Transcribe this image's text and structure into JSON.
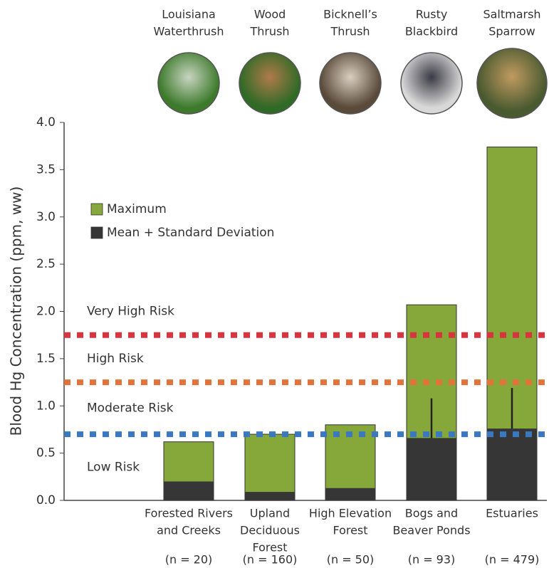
{
  "chart_data": {
    "type": "bar",
    "y_label": "Blood Hg Concentration (ppm, ww)",
    "birds": [
      [
        "Louisiana",
        "Waterthrush"
      ],
      [
        "Wood",
        "Thrush"
      ],
      [
        "Bicknell’s",
        "Thrush"
      ],
      [
        "Rusty",
        "Blackbird"
      ],
      [
        "Saltmarsh",
        "Sparrow"
      ]
    ],
    "categories": [
      [
        "Forested Rivers",
        "and Creeks"
      ],
      [
        "Upland",
        "Deciduous",
        "Forest"
      ],
      [
        "High Elevation",
        "Forest"
      ],
      [
        "Bogs and",
        "Beaver Ponds"
      ],
      [
        "Estuaries"
      ]
    ],
    "sample_sizes": [
      "(n = 20)",
      "(n = 160)",
      "(n = 50)",
      "(n = 93)",
      "(n = 479)"
    ],
    "series": [
      {
        "name": "Maximum",
        "color": "#86a83a",
        "values": [
          0.62,
          0.7,
          0.8,
          2.07,
          3.74
        ]
      },
      {
        "name": "Mean + Standard Deviation",
        "color": "#363636",
        "values": [
          0.2,
          0.09,
          0.13,
          0.66,
          0.76
        ],
        "errors": [
          null,
          null,
          null,
          0.42,
          0.43
        ]
      }
    ],
    "thresholds": [
      {
        "value": 0.7,
        "color": "#3a78c0"
      },
      {
        "value": 1.25,
        "color": "#e0743a"
      },
      {
        "value": 1.75,
        "color": "#d8343e"
      }
    ],
    "zones": [
      "Low Risk",
      "Moderate Risk",
      "High Risk",
      "Very High Risk"
    ],
    "ylim": [
      0,
      4.0
    ],
    "yticks": [
      {
        "value": 0,
        "label": "0.0"
      },
      {
        "value": 0.5,
        "label": "0.5"
      },
      {
        "value": 1,
        "label": "1.0"
      },
      {
        "value": 1.5,
        "label": "1.5"
      },
      {
        "value": 2,
        "label": "2.0"
      },
      {
        "value": 2.5,
        "label": "2.5"
      },
      {
        "value": 3,
        "label": "3.0"
      },
      {
        "value": 3.5,
        "label": "3.5"
      },
      {
        "value": 4,
        "label": "4.0"
      }
    ]
  }
}
